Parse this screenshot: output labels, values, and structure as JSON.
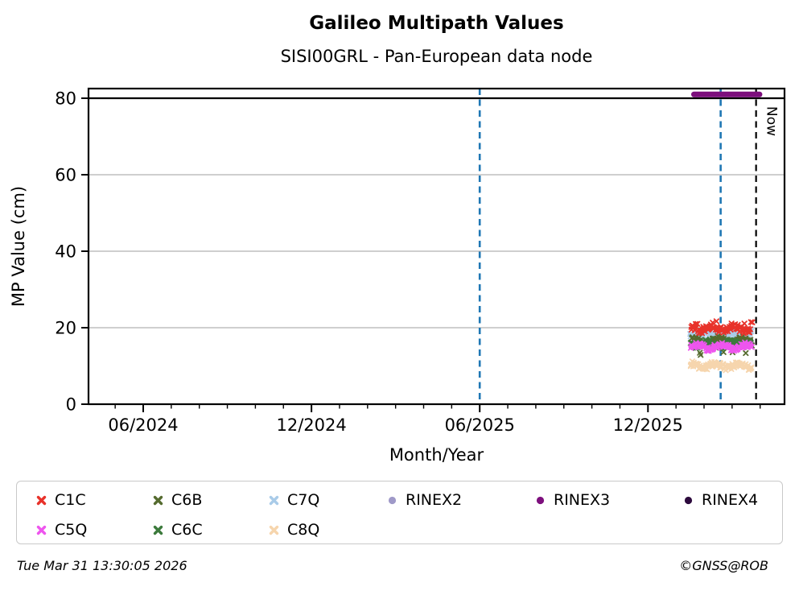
{
  "title": "Galileo Multipath Values",
  "subtitle": "SISI00GRL - Pan-European data node",
  "footer": {
    "timestamp": "Tue Mar 31 13:30:05 2026",
    "copyright": "©GNSS@ROB"
  },
  "annotations": {
    "now_label": "Now",
    "now_date": "2026-03-27",
    "event_line_color": "#1f77b4",
    "event_lines": [
      "2025-06-01",
      "2026-02-19"
    ],
    "threshold_line_value": 80
  },
  "chart_data": {
    "type": "scatter",
    "title": "Galileo Multipath Values",
    "subtitle": "SISI00GRL - Pan-European data node",
    "xlabel": "Month/Year",
    "ylabel": "MP Value (cm)",
    "x_major_ticks": [
      "06/2024",
      "12/2024",
      "06/2025",
      "12/2025"
    ],
    "y_ticks": [
      0,
      20,
      40,
      60,
      80
    ],
    "ylim": [
      0,
      82.7
    ],
    "x_range_months": [
      "04/2024",
      "05/2026"
    ],
    "grid": "horizontal-only",
    "legend_position": "below",
    "data_window": {
      "start": "2026-01-17",
      "end": "2026-03-22"
    },
    "series": [
      {
        "name": "C1C",
        "marker": "x",
        "color": "#e8322a",
        "mean": 19.8,
        "spread": 0.9,
        "spike_high": 21.3,
        "spike_rate": 0.1
      },
      {
        "name": "C5Q",
        "marker": "x",
        "color": "#ee55ee",
        "mean": 15.0,
        "spread": 0.6
      },
      {
        "name": "C6B",
        "marker": "x",
        "color": "#556b2f",
        "mean": 16.4,
        "spread": 0.9,
        "outlier_low": 13.3,
        "outlier_rate": 0.06
      },
      {
        "name": "C6C",
        "marker": "x",
        "color": "#3c7a3c",
        "mean": 15.8,
        "spread": 0.7
      },
      {
        "name": "C7Q",
        "marker": "x",
        "color": "#a9cbe8",
        "mean": 18.3,
        "spread": 0.8
      },
      {
        "name": "C8Q",
        "marker": "x",
        "color": "#f6d5ad",
        "mean": 10.0,
        "spread": 0.7
      },
      {
        "name": "RINEX2",
        "marker": "circle",
        "color": "#9f99c8"
      },
      {
        "name": "RINEX3",
        "marker": "circle",
        "color": "#7d0f7d",
        "line_value": 81
      },
      {
        "name": "RINEX4",
        "marker": "circle",
        "color": "#2d0a3d"
      }
    ],
    "draw_order": [
      "C8Q",
      "C7Q",
      "C6B",
      "C6C",
      "C5Q",
      "C1C"
    ]
  },
  "legend": {
    "rows": [
      [
        "C1C",
        "C6B",
        "C7Q",
        "RINEX2",
        "RINEX3",
        "RINEX4"
      ],
      [
        "C5Q",
        "C6C",
        "C8Q"
      ]
    ]
  }
}
